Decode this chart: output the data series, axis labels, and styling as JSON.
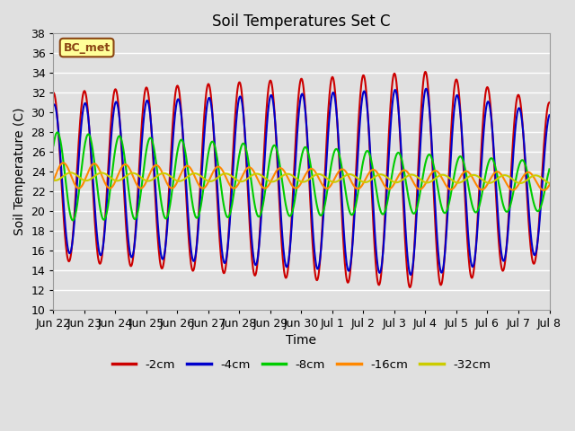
{
  "title": "Soil Temperatures Set C",
  "xlabel": "Time",
  "ylabel": "Soil Temperature (C)",
  "ylim": [
    10,
    38
  ],
  "yticks": [
    10,
    12,
    14,
    16,
    18,
    20,
    22,
    24,
    26,
    28,
    30,
    32,
    34,
    36,
    38
  ],
  "bg_color": "#e0e0e0",
  "plot_bg_color": "#e0e0e0",
  "grid_color": "#ffffff",
  "annotation_label": "BC_met",
  "annotation_bg": "#ffff99",
  "annotation_border": "#8B4513",
  "series": [
    {
      "label": "-2cm",
      "color": "#cc0000",
      "lw": 1.5
    },
    {
      "label": "-4cm",
      "color": "#0000cc",
      "lw": 1.5
    },
    {
      "label": "-8cm",
      "color": "#00cc00",
      "lw": 1.5
    },
    {
      "label": "-16cm",
      "color": "#ff8800",
      "lw": 1.5
    },
    {
      "label": "-32cm",
      "color": "#cccc00",
      "lw": 1.5
    }
  ],
  "n_points": 1000,
  "start_day": 0,
  "end_day": 16,
  "xtick_positions": [
    0,
    1,
    2,
    3,
    4,
    5,
    6,
    7,
    8,
    9,
    10,
    11,
    12,
    13,
    14,
    15,
    16
  ],
  "xtick_labels": [
    "Jun 22",
    "Jun 23",
    "Jun 24",
    "Jun 25",
    "Jun 26",
    "Jun 27",
    "Jun 28",
    "Jun 29",
    "Jun 30",
    "Jul 1",
    "Jul 2",
    "Jul 3",
    "Jul 4",
    "Jul 5",
    "Jul 6",
    "Jul 7",
    "Jul 8"
  ]
}
